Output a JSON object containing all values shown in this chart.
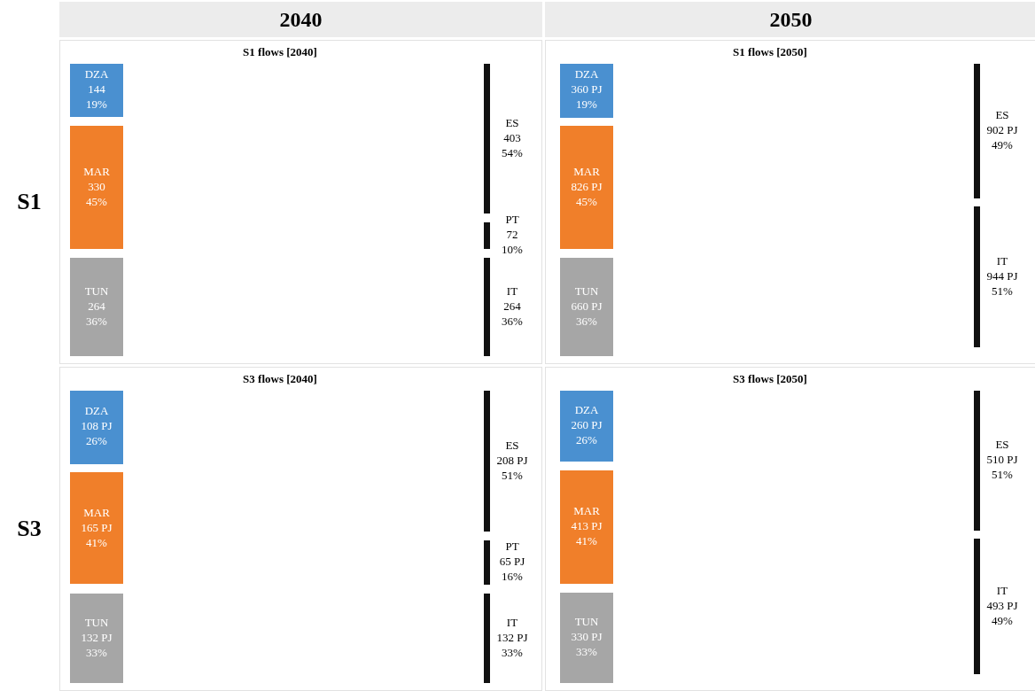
{
  "chart_data": [
    {
      "type": "other",
      "title": "2040"
    },
    {
      "type": "other",
      "title": "2050"
    },
    {
      "type": "other",
      "title": "S1"
    },
    {
      "type": "other",
      "title": "S1 flows [2040]",
      "categories": [
        "DZA",
        "MAR",
        "TUN",
        "ES",
        "PT",
        "IT"
      ],
      "values": [
        144,
        330,
        264,
        403,
        72,
        264
      ],
      "colors": [
        "#4a90d0",
        "#f07f2a",
        "#a6a6a6",
        null,
        null,
        null
      ],
      "value_labels": [
        "144\n19%",
        "330\n45%",
        "264\n36%",
        "403\n54%",
        "72\n10%",
        "264\n36%"
      ]
    },
    {
      "type": "other",
      "title": "S1 flows [2050]",
      "categories": [
        "DZA",
        "MAR",
        "TUN",
        "ES",
        "IT"
      ],
      "values": [
        360,
        826,
        660,
        902,
        944
      ],
      "colors": [
        "#4a90d0",
        "#f07f2a",
        "#a6a6a6",
        null,
        null
      ],
      "value_labels": [
        "360 PJ\n19%",
        "826 PJ\n45%",
        "660 PJ\n36%",
        "902 PJ\n49%",
        "944 PJ\n51%"
      ]
    },
    {
      "type": "other",
      "title": "S3"
    },
    {
      "type": "other",
      "title": "S3 flows [2040]",
      "categories": [
        "DZA",
        "MAR",
        "TUN",
        "ES",
        "PT",
        "IT"
      ],
      "values": [
        108,
        165,
        132,
        208,
        65,
        132
      ],
      "colors": [
        "#4a90d0",
        "#f07f2a",
        "#a6a6a6",
        null,
        null,
        null
      ],
      "value_labels": [
        "108 PJ\n26%",
        "165 PJ\n41%",
        "132 PJ\n33%",
        "208 PJ\n51%",
        "65 PJ\n16%",
        "132 PJ\n33%"
      ]
    },
    {
      "type": "other",
      "title": "S3 flows [2050]",
      "categories": [
        "DZA",
        "MAR",
        "TUN",
        "ES",
        "IT"
      ],
      "values": [
        260,
        413,
        330,
        510,
        493
      ],
      "colors": [
        "#4a90d0",
        "#f07f2a",
        "#a6a6a6",
        null,
        null
      ],
      "value_labels": [
        "260 PJ\n26%",
        "413 PJ\n41%",
        "330 PJ\n33%",
        "510 PJ\n51%",
        "493 PJ\n49%"
      ]
    }
  ]
}
